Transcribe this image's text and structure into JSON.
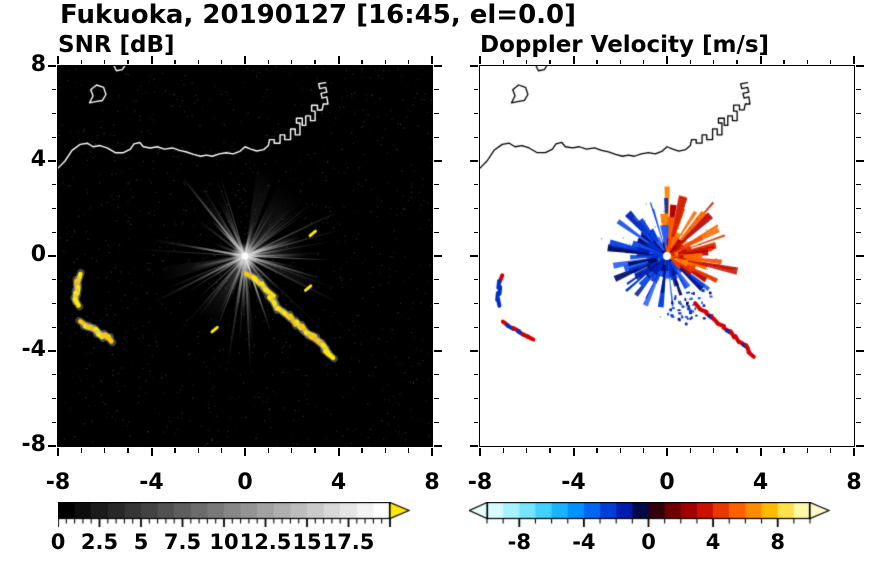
{
  "header": {
    "title": "Fukuoka, 20190127 [16:45, el=0.0]"
  },
  "panels": {
    "snr": {
      "title": "SNR [dB]"
    },
    "doppler": {
      "title": "Doppler Velocity [m/s]"
    }
  },
  "axes": {
    "tick_labels": [
      "-8",
      "-4",
      "0",
      "4",
      "8"
    ],
    "tick_values": [
      -8,
      -4,
      0,
      4,
      8
    ],
    "minor_step": 1,
    "xlim": [
      -8,
      8
    ],
    "ylim": [
      -8,
      8
    ]
  },
  "colorbars": {
    "snr": {
      "range": [
        0,
        20
      ],
      "labels": [
        "0",
        "2.5",
        "5",
        "7.5",
        "10",
        "12.5",
        "15",
        "17.5"
      ],
      "values": [
        0,
        2.5,
        5,
        7.5,
        10,
        12.5,
        15,
        17.5
      ],
      "major_step": 2.5,
      "minor_step": 0.5,
      "over_color": "#ffe800",
      "colors": [
        "#000000",
        "#0d0d0d",
        "#1b1b1b",
        "#282828",
        "#363636",
        "#434343",
        "#515151",
        "#5e5e5e",
        "#6c6c6c",
        "#797979",
        "#878787",
        "#949494",
        "#a2a2a2",
        "#afafaf",
        "#bdbdbd",
        "#cacaca",
        "#d8d8d8",
        "#e5e5e5",
        "#f3f3f3",
        "#ffffff"
      ]
    },
    "doppler": {
      "range": [
        -10,
        10
      ],
      "labels": [
        "-8",
        "-4",
        "0",
        "4",
        "8"
      ],
      "values": [
        -8,
        -4,
        0,
        4,
        8
      ],
      "major_step": 4,
      "minor_step": 1,
      "under_color": "#eaffff",
      "over_color": "#fffbc8",
      "colors": [
        "#d8fbff",
        "#a8f2ff",
        "#74e4ff",
        "#42d0ff",
        "#18b4ff",
        "#0092ff",
        "#0068f0",
        "#003ed8",
        "#001cae",
        "#000a46",
        "#32000a",
        "#6e0000",
        "#a00000",
        "#c91200",
        "#e83800",
        "#ff6000",
        "#ff8c00",
        "#ffba00",
        "#ffe14e",
        "#fff8a8"
      ]
    }
  },
  "chart_data": {
    "type": "heatmap",
    "title": "Fukuoka, 20190127 [16:45, el=0.0]",
    "site": "Fukuoka",
    "date": "20190127",
    "time": "16:45",
    "elevation_deg": 0.0,
    "axis": {
      "xlim": [
        -8,
        8
      ],
      "ylim": [
        -8,
        8
      ],
      "major_ticks": [
        -8,
        -4,
        0,
        4,
        8
      ],
      "minor_step": 1
    },
    "panels": [
      {
        "title": "SNR [dB]",
        "background": "#000000",
        "colormap": "grayscale",
        "colorbar_range": [
          0,
          20
        ],
        "colorbar_ticks": [
          0,
          2.5,
          5,
          7.5,
          10,
          12.5,
          15,
          17.5
        ],
        "content": "Radial bright SNR streaks emanating from the radar at the origin over a black background; yellow ground-clutter echoes to the southwest and a chain of yellow echoes curving southeast from the origin; coastline drawn in white across the northern part."
      },
      {
        "title": "Doppler Velocity [m/s]",
        "background": "#ffffff",
        "colormap": "diverging cyan-blue-black-red-yellow",
        "colorbar_range": [
          -10,
          10
        ],
        "colorbar_ticks": [
          -8,
          -4,
          0,
          4,
          8
        ],
        "content": "Fan of Doppler velocity wedges around the radar origin: negative velocities (blue/navy) to the west, south and southeast, positive velocities (red/orange) to the east and northeast; red-and-blue clutter echoes to the southwest; coastline drawn in black."
      }
    ],
    "radar_center": [
      0,
      0
    ],
    "coastline": [
      [
        -8.0,
        3.7
      ],
      [
        -7.7,
        4.0
      ],
      [
        -7.4,
        4.45
      ],
      [
        -7.05,
        4.7
      ],
      [
        -6.75,
        4.75
      ],
      [
        -6.5,
        4.6
      ],
      [
        -6.2,
        4.65
      ],
      [
        -5.9,
        4.55
      ],
      [
        -5.55,
        4.35
      ],
      [
        -5.2,
        4.35
      ],
      [
        -4.9,
        4.5
      ],
      [
        -4.75,
        4.72
      ],
      [
        -4.5,
        4.78
      ],
      [
        -4.35,
        4.6
      ],
      [
        -4.05,
        4.55
      ],
      [
        -3.75,
        4.6
      ],
      [
        -3.45,
        4.5
      ],
      [
        -3.1,
        4.55
      ],
      [
        -2.8,
        4.45
      ],
      [
        -2.5,
        4.38
      ],
      [
        -2.2,
        4.28
      ],
      [
        -1.9,
        4.2
      ],
      [
        -1.65,
        4.25
      ],
      [
        -1.4,
        4.2
      ],
      [
        -1.1,
        4.3
      ],
      [
        -0.8,
        4.35
      ],
      [
        -0.5,
        4.3
      ],
      [
        -0.2,
        4.42
      ],
      [
        0.0,
        4.6
      ],
      [
        0.25,
        4.5
      ],
      [
        0.5,
        4.42
      ],
      [
        0.8,
        4.48
      ],
      [
        1.0,
        4.65
      ],
      [
        1.05,
        4.9
      ],
      [
        1.25,
        4.9
      ],
      [
        1.25,
        4.75
      ],
      [
        1.5,
        4.75
      ],
      [
        1.5,
        5.1
      ],
      [
        1.7,
        5.1
      ],
      [
        1.7,
        4.9
      ],
      [
        1.95,
        4.9
      ],
      [
        1.95,
        5.35
      ],
      [
        2.15,
        5.35
      ],
      [
        2.15,
        5.1
      ],
      [
        2.35,
        5.1
      ],
      [
        2.35,
        5.6
      ],
      [
        2.2,
        5.6
      ],
      [
        2.2,
        5.8
      ],
      [
        2.45,
        5.8
      ],
      [
        2.45,
        5.5
      ],
      [
        2.6,
        5.5
      ],
      [
        2.6,
        5.9
      ],
      [
        2.8,
        5.9
      ],
      [
        2.8,
        5.7
      ],
      [
        3.0,
        5.7
      ],
      [
        3.0,
        6.1
      ],
      [
        2.85,
        6.1
      ],
      [
        2.85,
        6.35
      ],
      [
        3.1,
        6.35
      ],
      [
        3.1,
        6.15
      ],
      [
        3.3,
        6.15
      ],
      [
        3.35,
        6.4
      ],
      [
        3.55,
        6.4
      ],
      [
        3.5,
        6.7
      ],
      [
        3.3,
        6.65
      ],
      [
        3.25,
        6.85
      ],
      [
        3.5,
        6.9
      ],
      [
        3.45,
        7.1
      ],
      [
        3.2,
        7.05
      ],
      [
        3.15,
        7.25
      ],
      [
        3.45,
        7.3
      ]
    ],
    "island": [
      [
        -6.65,
        6.45
      ],
      [
        -6.5,
        6.75
      ],
      [
        -6.6,
        7.0
      ],
      [
        -6.35,
        7.2
      ],
      [
        -6.05,
        7.1
      ],
      [
        -5.95,
        6.8
      ],
      [
        -6.1,
        6.55
      ],
      [
        -6.4,
        6.5
      ],
      [
        -6.65,
        6.45
      ]
    ],
    "coast_fragment": [
      [
        -5.6,
        8.0
      ],
      [
        -5.5,
        7.8
      ],
      [
        -5.25,
        7.85
      ],
      [
        -5.15,
        8.0
      ]
    ],
    "clutter_chain": [
      [
        0.25,
        -0.85
      ],
      [
        0.5,
        -1.05
      ],
      [
        0.8,
        -1.3
      ],
      [
        1.05,
        -1.55
      ],
      [
        1.15,
        -1.85
      ],
      [
        1.3,
        -2.1
      ],
      [
        1.55,
        -2.3
      ],
      [
        1.8,
        -2.5
      ],
      [
        2.05,
        -2.7
      ],
      [
        2.3,
        -2.9
      ],
      [
        2.55,
        -3.1
      ],
      [
        2.8,
        -3.3
      ],
      [
        3.0,
        -3.5
      ],
      [
        3.25,
        -3.7
      ],
      [
        3.45,
        -3.9
      ],
      [
        3.6,
        -4.15
      ]
    ],
    "west_feature_a": [
      [
        -7.1,
        -0.95
      ],
      [
        -7.2,
        -1.2
      ],
      [
        -7.15,
        -1.45
      ],
      [
        -7.25,
        -1.7
      ],
      [
        -7.2,
        -1.95
      ]
    ],
    "west_feature_b": [
      [
        -6.9,
        -2.85
      ],
      [
        -6.7,
        -3.0
      ],
      [
        -6.45,
        -3.1
      ],
      [
        -6.25,
        -3.25
      ],
      [
        -6.05,
        -3.35
      ],
      [
        -5.85,
        -3.45
      ]
    ],
    "spot_echoes": [
      [
        2.9,
        0.95
      ],
      [
        2.7,
        -1.35
      ],
      [
        -1.3,
        -3.1
      ]
    ],
    "clutter_color": "#ffe800",
    "doppler_warm_colors": [
      "#c01000",
      "#d82400",
      "#ea3a00",
      "#f85200",
      "#ff6a00",
      "#ff8400",
      "#b00000"
    ],
    "doppler_cool_colors": [
      "#0020b4",
      "#0030d0",
      "#0040e8",
      "#1450f0",
      "#001890",
      "#000c66",
      "#2a5cf4"
    ]
  }
}
